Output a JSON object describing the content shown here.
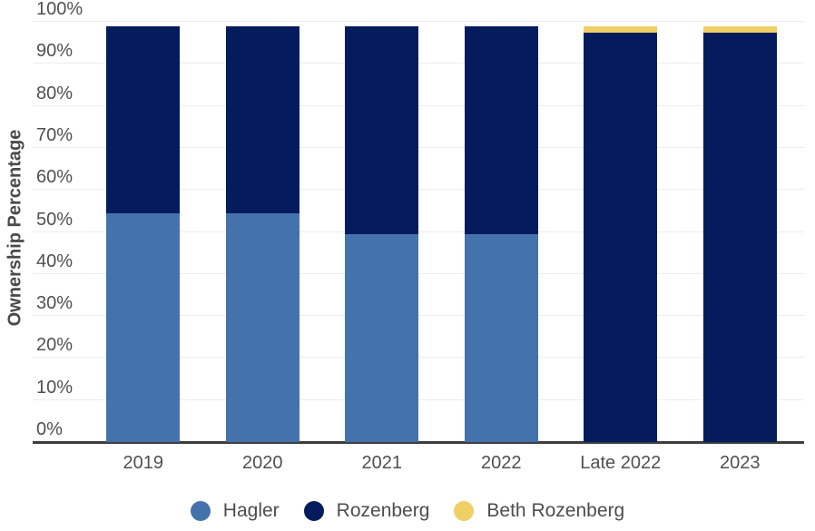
{
  "chart_data": {
    "type": "bar",
    "stacked": true,
    "title": "",
    "xlabel": "",
    "ylabel": "Ownership Percentage",
    "categories": [
      "2019",
      "2020",
      "2021",
      "2022",
      "Late 2022",
      "2023"
    ],
    "series": [
      {
        "name": "Hagler",
        "color": "#4472ac",
        "values": [
          54.5,
          54.5,
          49.5,
          49.5,
          0,
          0
        ]
      },
      {
        "name": "Rozenberg",
        "color": "#041c5e",
        "values": [
          44.5,
          44.5,
          49.5,
          49.5,
          97.5,
          97.5
        ]
      },
      {
        "name": "Beth Rozenberg",
        "color": "#f0cf66",
        "values": [
          0,
          0,
          0,
          0,
          1.5,
          1.5
        ]
      }
    ],
    "ylim": [
      0,
      100
    ],
    "ytick_labels": [
      "0%",
      "10%",
      "20%",
      "30%",
      "40%",
      "50%",
      "60%",
      "70%",
      "80%",
      "90%",
      "100%"
    ],
    "grid": true,
    "legend_position": "bottom",
    "axis_line_color": "#3d3d3d",
    "gridline_color": "#ededed",
    "text_color": "#505050"
  }
}
